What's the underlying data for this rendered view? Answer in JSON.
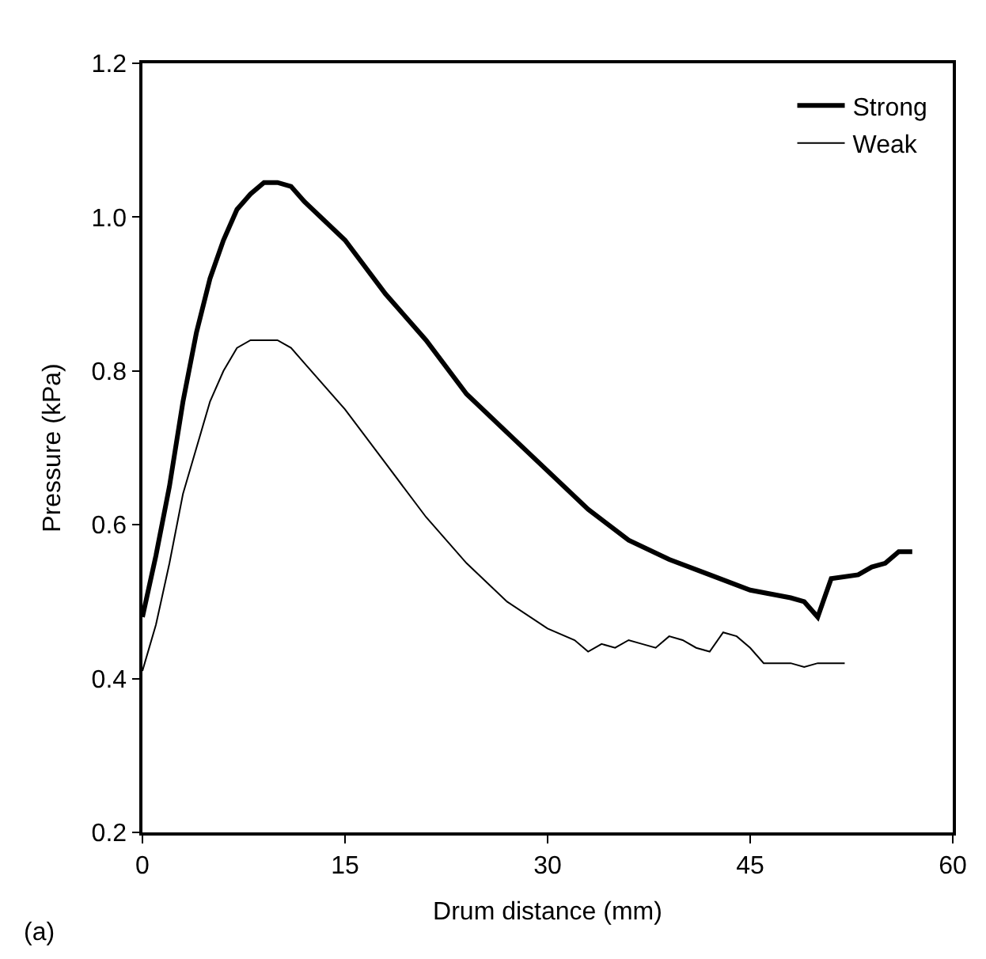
{
  "chart_data": {
    "type": "line",
    "xlabel": "Drum distance (mm)",
    "ylabel": "Pressure (kPa)",
    "xlim": [
      0,
      60
    ],
    "xticks": [
      0,
      15,
      30,
      45,
      60
    ],
    "ylim": [
      0.2,
      1.2
    ],
    "yticks": [
      {
        "value": 0.2,
        "label": "0.2"
      },
      {
        "value": 0.4,
        "label": "0.4"
      },
      {
        "value": 0.6,
        "label": "0.6"
      },
      {
        "value": 0.8,
        "label": "0.8"
      },
      {
        "value": 1.0,
        "label": "1.0"
      },
      {
        "value": 1.2,
        "label": "1.2"
      }
    ],
    "legend": "top right",
    "marker": "none",
    "line_style": "solid",
    "annotations": [
      "(a)"
    ],
    "series": [
      {
        "name": "Strong",
        "color": "#000000",
        "x": [
          0,
          1,
          2,
          3,
          4,
          5,
          6,
          7,
          8,
          9,
          10,
          11,
          12,
          15,
          18,
          21,
          24,
          27,
          30,
          33,
          36,
          39,
          42,
          45,
          48,
          49,
          50,
          50.5,
          51,
          53,
          54,
          55,
          56,
          57
        ],
        "values": [
          0.48,
          0.56,
          0.65,
          0.76,
          0.85,
          0.92,
          0.97,
          1.01,
          1.03,
          1.045,
          1.045,
          1.04,
          1.02,
          0.97,
          0.9,
          0.84,
          0.77,
          0.72,
          0.67,
          0.62,
          0.58,
          0.555,
          0.535,
          0.515,
          0.505,
          0.5,
          0.48,
          0.505,
          0.53,
          0.535,
          0.545,
          0.55,
          0.565,
          0.565
        ]
      },
      {
        "name": "Weak",
        "color": "#000000",
        "x": [
          0,
          1,
          2,
          3,
          4,
          5,
          6,
          7,
          8,
          9,
          10,
          11,
          12,
          15,
          18,
          21,
          24,
          27,
          30,
          32,
          33,
          34,
          35,
          36,
          37,
          38,
          39,
          40,
          41,
          42,
          43,
          44,
          45,
          46,
          48,
          49,
          50,
          52
        ],
        "values": [
          0.41,
          0.47,
          0.55,
          0.64,
          0.7,
          0.76,
          0.8,
          0.83,
          0.84,
          0.84,
          0.84,
          0.83,
          0.81,
          0.75,
          0.68,
          0.61,
          0.55,
          0.5,
          0.465,
          0.45,
          0.435,
          0.445,
          0.44,
          0.45,
          0.445,
          0.44,
          0.455,
          0.45,
          0.44,
          0.435,
          0.46,
          0.455,
          0.44,
          0.42,
          0.42,
          0.415,
          0.42,
          0.42
        ]
      }
    ]
  }
}
